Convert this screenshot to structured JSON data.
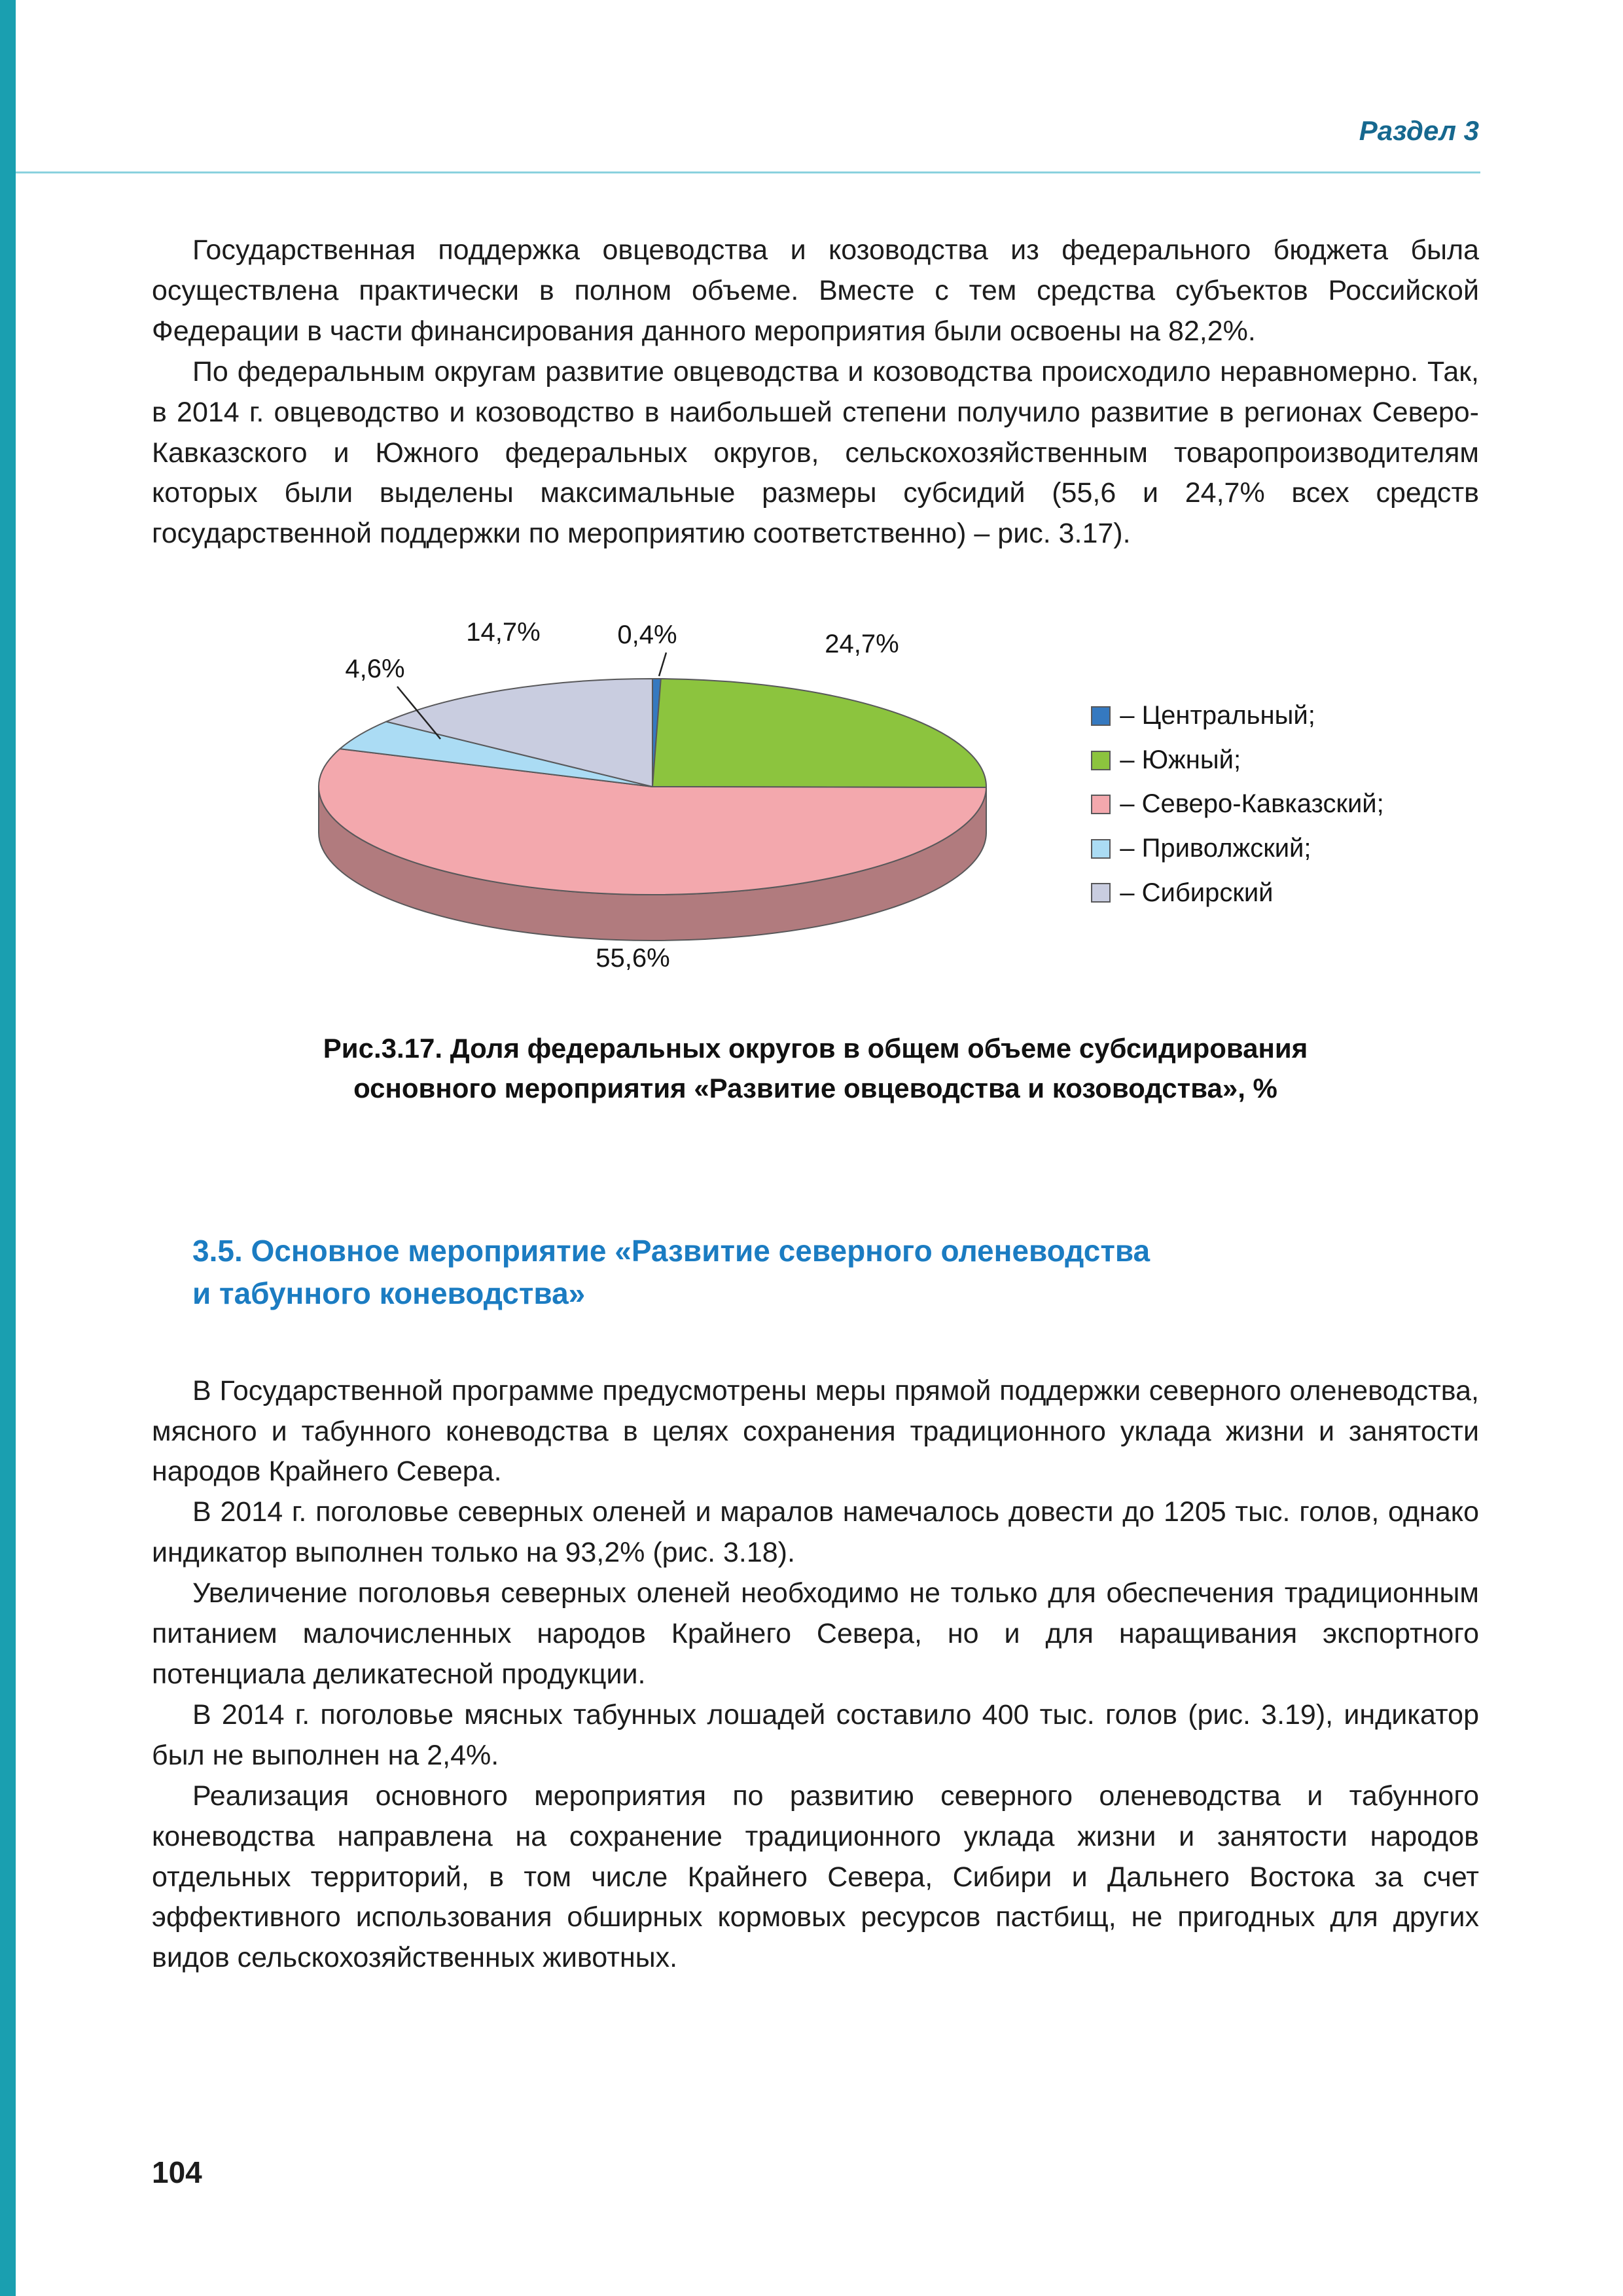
{
  "colors": {
    "accent-bar": "#1a9fb0",
    "header-text": "#16688f",
    "header-rule": "#8ad1de",
    "section-heading": "#1b7cc2",
    "body-text": "#1c1c1c",
    "slice-stroke": "#58585a"
  },
  "header": {
    "section_label": "Раздел 3"
  },
  "paragraphs_top": [
    "Государственная поддержка овцеводства и козоводства из федерального бюджета была осуществлена практически в полном объеме. Вместе с тем средства субъектов Российской Федерации в части финансирования данного мероприятия были освоены на 82,2%.",
    "По федеральным округам развитие овцеводства и козоводства происходило неравномерно. Так, в 2014 г. овцеводство и козоводство в наибольшей степени получило развитие в регионах Северо-Кавказского и Южного федеральных округов, сельскохозяйственным товаропроизводителям которых были выделены максимальные размеры субсидий (55,6 и 24,7% всех средств государственной поддержки по мероприятию соответственно) – рис. 3.17)."
  ],
  "chart_data": {
    "type": "pie",
    "style": "3d",
    "unit": "%",
    "legend_position": "right",
    "slices": [
      {
        "name": "Центральный",
        "value": 0.4,
        "label": "0,4%",
        "legend": "– Центральный;",
        "color": "#3579c0"
      },
      {
        "name": "Южный",
        "value": 24.7,
        "label": "24,7%",
        "legend": "– Южный;",
        "color": "#8cc43e"
      },
      {
        "name": "Северо-Кавказский",
        "value": 55.6,
        "label": "55,6%",
        "legend": "– Северо-Кавказский;",
        "color": "#f3a8ad"
      },
      {
        "name": "Приволжский",
        "value": 4.6,
        "label": "4,6%",
        "legend": "– Приволжский;",
        "color": "#abdcf4"
      },
      {
        "name": "Сибирский",
        "value": 14.7,
        "label": "14,7%",
        "legend": "– Сибирский",
        "color": "#c9cde0"
      }
    ]
  },
  "figure": {
    "caption_line1": "Рис.3.17. Доля федеральных округов в общем объеме субсидирования",
    "caption_line2": "основного мероприятия «Развитие овцеводства и козоводства», %"
  },
  "section": {
    "heading_line1": "3.5. Основное мероприятие «Развитие северного оленеводства",
    "heading_line2": "и табунного коневодства»"
  },
  "paragraphs_bottom": [
    "В Государственной программе предусмотрены меры прямой поддержки северного оленеводства, мясного и табунного коневодства в целях сохранения традиционного уклада жизни и занятости народов Крайнего Севера.",
    "В 2014 г. поголовье северных оленей и маралов намечалось довести до 1205 тыс. голов, однако индикатор выполнен только на 93,2% (рис. 3.18).",
    "Увеличение поголовья северных оленей необходимо не только для обеспечения традиционным питанием малочисленных народов Крайнего Севера, но и для наращивания экспортного потенциала деликатесной продукции.",
    "В 2014 г. поголовье мясных табунных лошадей составило 400 тыс. голов (рис. 3.19), индикатор был не выполнен на 2,4%.",
    "Реализация основного мероприятия по развитию северного оленеводства и табунного коневодства направлена на сохранение традиционного уклада жизни и занятости народов отдельных территорий, в том числе Крайнего Севера, Сибири и Дальнего Востока за счет эффективного использования обширных кормовых ресурсов пастбищ, не пригодных для других видов сельскохозяйственных животных."
  ],
  "footer": {
    "page_number": "104"
  }
}
